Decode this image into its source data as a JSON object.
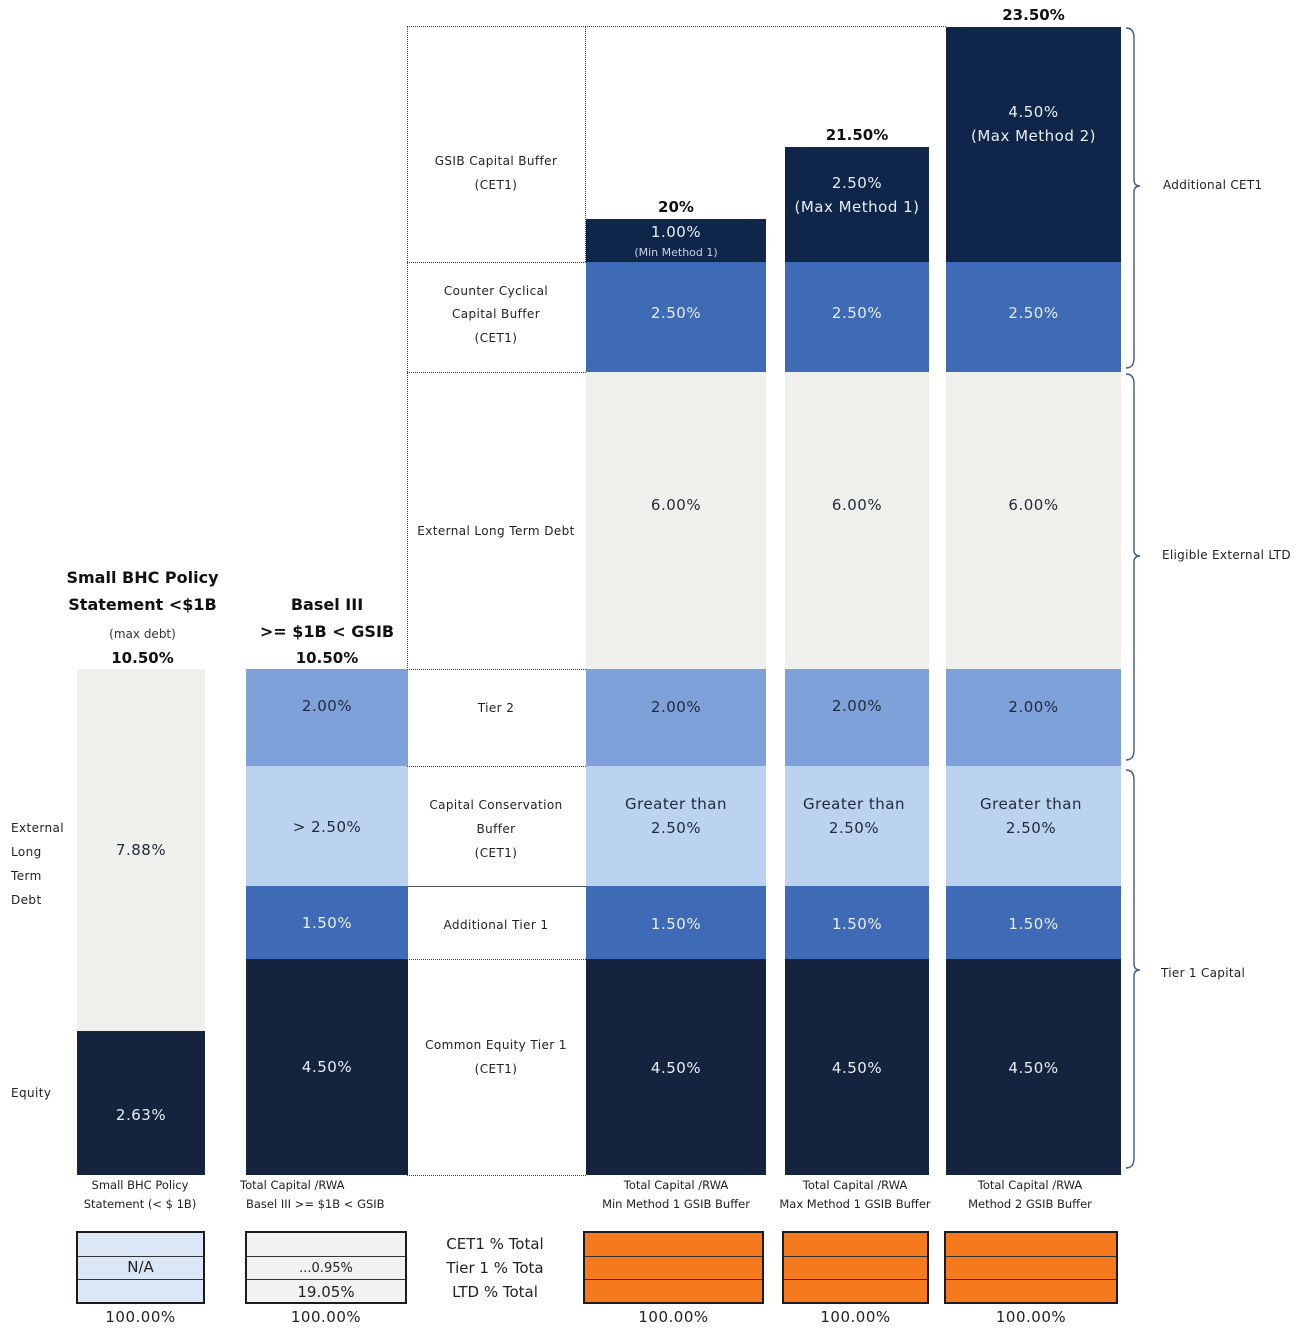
{
  "colors": {
    "navy": "#16233f",
    "dark_navy_top": "#0f2549",
    "blue": "#3f6bb6",
    "mid_blue": "#7fa1d9",
    "light_blue": "#bcd3f0",
    "pale": "#efefec",
    "orange": "#f57a1e"
  },
  "chart_data": {
    "type": "bar",
    "stacked": true,
    "categories": [
      "Small BHC Policy Statement (< $ 1B)",
      "Total Capital /RWA Basel III >= $1B < GSIB",
      "Total Capital /RWA Min Method 1 GSIB Buffer",
      "Total Capital /RWA Max Method 1 GSIB Buffer",
      "Total Capital /RWA Method 2 GSIB Buffer"
    ],
    "column_headers": [
      {
        "line1": "Small BHC Policy",
        "line2": "Statement <$1B",
        "note": "(max debt)",
        "total": "10.50%"
      },
      {
        "line1": "Basel III",
        "line2": ">= $1B < GSIB",
        "note": "",
        "total": "10.50%"
      },
      {
        "line1": "",
        "line2": "",
        "note": "",
        "total": "20%"
      },
      {
        "line1": "",
        "line2": "",
        "note": "",
        "total": "21.50%"
      },
      {
        "line1": "",
        "line2": "",
        "note": "",
        "total": "23.50%"
      }
    ],
    "series": [
      {
        "name": "Common Equity Tier 1 (CET1)",
        "values": [
          null,
          4.5,
          4.5,
          4.5,
          4.5
        ],
        "labels": [
          "",
          "4.50%",
          "4.50%",
          "4.50%",
          "4.50%"
        ]
      },
      {
        "name": "Additional Tier 1",
        "values": [
          null,
          1.5,
          1.5,
          1.5,
          1.5
        ],
        "labels": [
          "",
          "1.50%",
          "1.50%",
          "1.50%",
          "1.50%"
        ]
      },
      {
        "name": "Capital Conservation Buffer (CET1)",
        "values": [
          null,
          2.5,
          2.5,
          2.5,
          2.5
        ],
        "labels": [
          "",
          "> 2.50%",
          "Greater than 2.50%",
          "Greater than 2.50%",
          "Greater than 2.50%"
        ]
      },
      {
        "name": "Tier 2",
        "values": [
          null,
          2.0,
          2.0,
          2.0,
          2.0
        ],
        "labels": [
          "",
          "2.00%",
          "2.00%",
          "2.00%",
          "2.00%"
        ]
      },
      {
        "name": "External Long Term Debt",
        "values": [
          null,
          null,
          6.0,
          6.0,
          6.0
        ],
        "labels": [
          "",
          "",
          "6.00%",
          "6.00%",
          "6.00%"
        ]
      },
      {
        "name": "Counter Cyclical Capital Buffer (CET1)",
        "values": [
          null,
          null,
          2.5,
          2.5,
          2.5
        ],
        "labels": [
          "",
          "",
          "2.50%",
          "2.50%",
          "2.50%"
        ]
      },
      {
        "name": "GSIB Capital Buffer (CET1)",
        "values": [
          null,
          null,
          1.0,
          2.5,
          4.5
        ],
        "labels": [
          "",
          "",
          "1.00%",
          "2.50%",
          "4.50%"
        ],
        "sublabels": [
          "",
          "",
          "(Min Method 1)",
          "(Max Method 1)",
          "(Max Method 2)"
        ]
      }
    ],
    "small_bhc": {
      "equity": {
        "value": 2.63,
        "label": "2.63%",
        "name": "Equity"
      },
      "debt": {
        "value": 7.88,
        "label": "7.88%",
        "name": "External Long Term Debt"
      }
    }
  },
  "middle_labels": {
    "gsib": [
      "GSIB Capital Buffer",
      "(CET1)"
    ],
    "ccb": [
      "Counter Cyclical",
      "Capital Buffer",
      "(CET1)"
    ],
    "ltd": [
      "External Long Term Debt"
    ],
    "tier2": [
      "Tier 2"
    ],
    "conservation": [
      "Capital Conservation",
      "Buffer",
      "(CET1)"
    ],
    "at1": [
      "Additional Tier 1"
    ],
    "cet1": [
      "Common Equity Tier 1",
      "(CET1)"
    ]
  },
  "left_labels": {
    "ltd": [
      "External",
      "Long",
      "Term",
      "Debt"
    ],
    "equity": "Equity"
  },
  "brackets": {
    "additional_cet1": "Additional CET1",
    "eligible_ltd": "Eligible External LTD",
    "tier1": "Tier 1 Capital"
  },
  "bottom_labels": [
    [
      "Small BHC Policy",
      "Statement (< $ 1B)"
    ],
    [
      "Total Capital /RWA",
      "Basel III >= $1B < GSIB"
    ],
    [
      "Total Capital /RWA",
      "Min Method 1 GSIB Buffer"
    ],
    [
      "Total Capital /RWA",
      "Max Method 1 GSIB Buffer"
    ],
    [
      "Total Capital /RWA",
      "Method 2 GSIB Buffer"
    ]
  ],
  "summary": {
    "row_labels": [
      "CET1 % Total",
      "Tier 1 % Tota",
      "LTD % Total"
    ],
    "small_bhc_value": "N/A",
    "basel_values": [
      "",
      "...0.95%",
      "19.05%"
    ],
    "totals": [
      "100.00%",
      "100.00%",
      "100.00%",
      "100.00%",
      "100.00%"
    ]
  }
}
